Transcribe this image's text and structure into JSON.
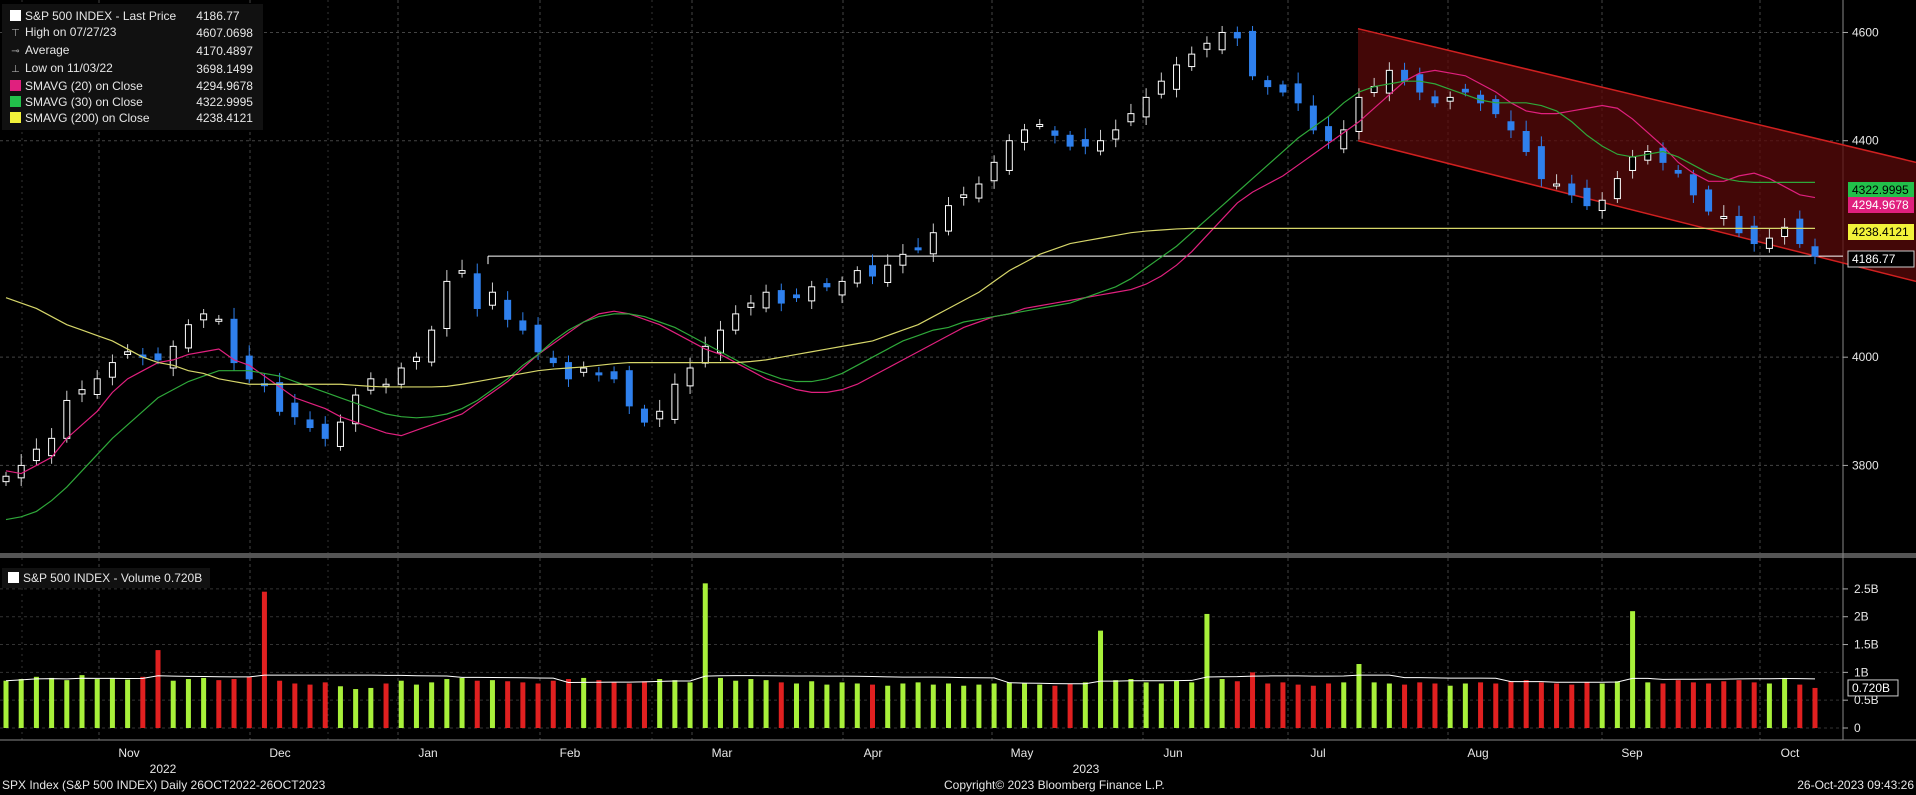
{
  "price_legend": {
    "title": "S&P 500 INDEX - Last Price",
    "title_value": "4186.77",
    "rows": [
      {
        "label": "High on 07/27/23",
        "value": "4607.0698",
        "glyph": "high-marker-icon"
      },
      {
        "label": "Average",
        "value": "4170.4897",
        "glyph": "average-marker-icon"
      },
      {
        "label": "Low on 11/03/22",
        "value": "3698.1499",
        "glyph": "low-marker-icon"
      },
      {
        "label": "SMAVG (20)  on Close",
        "value": "4294.9678",
        "color": "#e0207e"
      },
      {
        "label": "SMAVG (30)  on Close",
        "value": "4322.9995",
        "color": "#22c04a"
      },
      {
        "label": "SMAVG (200)  on Close",
        "value": "4238.4121",
        "color": "#f2f23a"
      }
    ]
  },
  "volume_legend": {
    "title": "S&P 500 INDEX - Volume 0.720B"
  },
  "footer": {
    "left": "SPX Index (S&P 500 INDEX)  Daily 26OCT2022-26OCT2023",
    "center": "Copyright© 2023 Bloomberg Finance L.P.",
    "right": "26-Oct-2023 09:43:26"
  },
  "colors": {
    "up": "#ffffff",
    "down": "#2f80ed",
    "sma20": "#e0207e",
    "sma30": "#2fa83a",
    "sma200": "#d6d66a",
    "volume_up": "#a8f03a",
    "volume_down": "#e02020",
    "channel": "#d02020",
    "grid": "#444444"
  },
  "chart_data": {
    "type": "candlestick",
    "x_labels": [
      "Nov",
      "Dec",
      "Jan",
      "Feb",
      "Mar",
      "Apr",
      "May",
      "Jun",
      "Jul",
      "Aug",
      "Sep",
      "Oct"
    ],
    "year_labels": [
      "2022",
      "2023"
    ],
    "price_axis": {
      "ticks": [
        "4600",
        "4400",
        "4000",
        "3800"
      ],
      "range": [
        3640,
        4660
      ]
    },
    "volume_axis": {
      "ticks": [
        "2.5B",
        "2B",
        "1.5B",
        "1B",
        "0.5B",
        "0"
      ],
      "range": [
        0,
        2.75
      ]
    },
    "last_price": "4186.77",
    "last_volume": "0.720B",
    "horizontal_level": 4186.77,
    "channel": {
      "upper": [
        {
          "date": "2023-07-27",
          "value": 4607
        },
        {
          "date": "2023-10-26",
          "value": 4360
        }
      ],
      "lower": [
        {
          "date": "2023-07-27",
          "value": 4400
        },
        {
          "date": "2023-10-26",
          "value": 4140
        }
      ]
    },
    "series": [
      {
        "name": "SMAVG (20)  on Close",
        "last": "4294.9678",
        "values": [
          3790,
          3785,
          3800,
          3815,
          3850,
          3875,
          3900,
          3935,
          3960,
          3975,
          3990,
          3995,
          4005,
          4010,
          4015,
          3995,
          3985,
          3965,
          3945,
          3925,
          3915,
          3905,
          3890,
          3880,
          3870,
          3860,
          3855,
          3865,
          3875,
          3885,
          3895,
          3915,
          3935,
          3955,
          3980,
          4005,
          4025,
          4045,
          4065,
          4080,
          4085,
          4080,
          4070,
          4060,
          4045,
          4030,
          4015,
          4005,
          3990,
          3975,
          3960,
          3950,
          3940,
          3935,
          3935,
          3940,
          3950,
          3965,
          3980,
          3995,
          4010,
          4025,
          4040,
          4055,
          4065,
          4075,
          4080,
          4090,
          4095,
          4100,
          4105,
          4110,
          4115,
          4120,
          4125,
          4135,
          4150,
          4170,
          4195,
          4225,
          4255,
          4285,
          4305,
          4320,
          4335,
          4355,
          4375,
          4395,
          4415,
          4435,
          4460,
          4485,
          4510,
          4525,
          4530,
          4525,
          4520,
          4505,
          4490,
          4470,
          4455,
          4450,
          4450,
          4455,
          4460,
          4465,
          4460,
          4440,
          4415,
          4390,
          4360,
          4340,
          4325,
          4325,
          4335,
          4340,
          4330,
          4315,
          4300,
          4295
        ]
      },
      {
        "name": "SMAVG (30)  on Close",
        "last": "4322.9995",
        "values": [
          3700,
          3705,
          3715,
          3735,
          3760,
          3790,
          3820,
          3850,
          3875,
          3900,
          3925,
          3940,
          3955,
          3965,
          3975,
          3975,
          3975,
          3970,
          3965,
          3955,
          3945,
          3935,
          3925,
          3915,
          3905,
          3895,
          3890,
          3888,
          3890,
          3895,
          3905,
          3920,
          3940,
          3960,
          3985,
          4005,
          4030,
          4050,
          4065,
          4075,
          4080,
          4080,
          4075,
          4065,
          4055,
          4040,
          4025,
          4010,
          3995,
          3980,
          3970,
          3960,
          3955,
          3955,
          3960,
          3970,
          3985,
          4000,
          4015,
          4030,
          4040,
          4050,
          4055,
          4065,
          4070,
          4075,
          4080,
          4085,
          4090,
          4095,
          4100,
          4110,
          4120,
          4130,
          4145,
          4165,
          4185,
          4205,
          4230,
          4255,
          4280,
          4305,
          4330,
          4355,
          4380,
          4405,
          4425,
          4445,
          4470,
          4490,
          4500,
          4505,
          4510,
          4510,
          4505,
          4495,
          4485,
          4475,
          4470,
          4470,
          4470,
          4465,
          4455,
          4435,
          4410,
          4390,
          4375,
          4370,
          4375,
          4380,
          4370,
          4355,
          4340,
          4330,
          4325,
          4323,
          4323,
          4323,
          4323,
          4323
        ]
      },
      {
        "name": "SMAVG (200)  on Close",
        "last": "4238.4121",
        "values": [
          4110,
          4100,
          4090,
          4075,
          4060,
          4050,
          4040,
          4030,
          4015,
          4000,
          3990,
          3985,
          3975,
          3970,
          3960,
          3955,
          3950,
          3950,
          3950,
          3950,
          3950,
          3950,
          3950,
          3948,
          3946,
          3945,
          3945,
          3945,
          3945,
          3946,
          3950,
          3955,
          3960,
          3965,
          3970,
          3975,
          3978,
          3980,
          3982,
          3985,
          3988,
          3990,
          3990,
          3990,
          3990,
          3990,
          3990,
          3990,
          3990,
          3992,
          3995,
          4000,
          4005,
          4010,
          4015,
          4020,
          4025,
          4030,
          4040,
          4050,
          4060,
          4075,
          4090,
          4105,
          4120,
          4140,
          4160,
          4175,
          4190,
          4200,
          4210,
          4215,
          4220,
          4225,
          4230,
          4233,
          4235,
          4237,
          4238,
          4238,
          4238,
          4238,
          4238,
          4238,
          4238,
          4238,
          4238,
          4238,
          4238,
          4238,
          4238,
          4238,
          4238,
          4238,
          4238,
          4238,
          4238,
          4238,
          4238,
          4238,
          4238,
          4238,
          4238,
          4238,
          4238,
          4238,
          4238,
          4238,
          4238,
          4238,
          4238,
          4238,
          4238,
          4238,
          4238,
          4238,
          4238,
          4238,
          4238,
          4238
        ]
      }
    ],
    "close": [
      3780,
      3800,
      3830,
      3850,
      3920,
      3940,
      3960,
      3990,
      4010,
      4000,
      3995,
      4020,
      4060,
      4080,
      4070,
      3990,
      3960,
      3950,
      3900,
      3890,
      3870,
      3850,
      3880,
      3930,
      3960,
      3950,
      3980,
      4000,
      4050,
      4140,
      4160,
      4090,
      4120,
      4070,
      4050,
      4010,
      3990,
      3960,
      3980,
      3970,
      3960,
      3910,
      3880,
      3900,
      3950,
      3980,
      4020,
      4050,
      4080,
      4100,
      4120,
      4100,
      4110,
      4130,
      4130,
      4140,
      4160,
      4150,
      4170,
      4190,
      4200,
      4230,
      4280,
      4300,
      4320,
      4360,
      4400,
      4420,
      4430,
      4410,
      4390,
      4390,
      4400,
      4420,
      4450,
      4480,
      4510,
      4540,
      4560,
      4580,
      4600,
      4590,
      4520,
      4500,
      4490,
      4470,
      4420,
      4400,
      4420,
      4480,
      4500,
      4530,
      4510,
      4490,
      4470,
      4480,
      4490,
      4470,
      4450,
      4420,
      4380,
      4330,
      4320,
      4300,
      4280,
      4290,
      4330,
      4370,
      4380,
      4360,
      4340,
      4300,
      4270,
      4260,
      4230,
      4210,
      4220,
      4240,
      4210,
      4187
    ],
    "volume": [
      0.85,
      0.88,
      0.92,
      0.9,
      0.86,
      0.95,
      0.88,
      0.9,
      0.87,
      0.92,
      1.4,
      0.85,
      0.88,
      0.9,
      0.86,
      0.88,
      0.92,
      2.45,
      0.85,
      0.8,
      0.78,
      0.82,
      0.75,
      0.7,
      0.72,
      0.8,
      0.85,
      0.78,
      0.82,
      0.88,
      0.9,
      0.85,
      0.86,
      0.84,
      0.82,
      0.8,
      0.85,
      0.88,
      0.9,
      0.86,
      0.82,
      0.8,
      0.84,
      0.88,
      0.86,
      0.82,
      2.6,
      0.9,
      0.85,
      0.88,
      0.86,
      0.82,
      0.8,
      0.84,
      0.78,
      0.82,
      0.8,
      0.78,
      0.76,
      0.8,
      0.82,
      0.78,
      0.8,
      0.76,
      0.78,
      0.8,
      0.82,
      0.8,
      0.78,
      0.76,
      0.8,
      0.82,
      1.75,
      0.86,
      0.88,
      0.82,
      0.8,
      0.85,
      0.82,
      2.05,
      0.88,
      0.84,
      1.0,
      0.8,
      0.82,
      0.78,
      0.76,
      0.8,
      0.82,
      1.15,
      0.82,
      0.8,
      0.78,
      0.82,
      0.8,
      0.76,
      0.8,
      0.82,
      0.8,
      0.84,
      0.86,
      0.82,
      0.8,
      0.78,
      0.82,
      0.8,
      0.84,
      2.1,
      0.82,
      0.8,
      0.86,
      0.82,
      0.8,
      0.84,
      0.86,
      0.82,
      0.8,
      0.9,
      0.78,
      0.72
    ],
    "volume_avg_last": 0.72
  }
}
